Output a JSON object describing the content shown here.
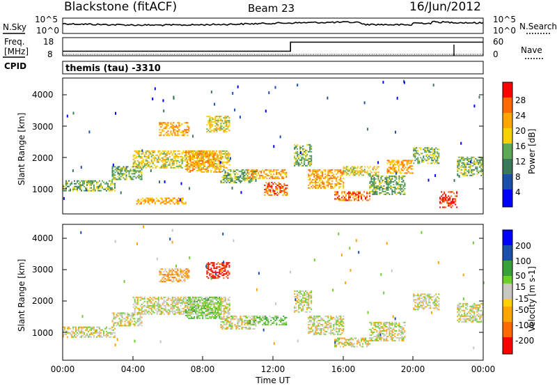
{
  "header": {
    "station": "Blackstone (fitACF)",
    "beam": "Beam 23",
    "date": "16/Jun/2012"
  },
  "noise_panel": {
    "left_label": "N.Sky",
    "right_label": "N.Search",
    "top_tick_left": "10^5",
    "bottom_tick_left": "10^0",
    "top_tick_right": "10^5",
    "bottom_tick_right": "10^0"
  },
  "freq_panel": {
    "left_label_top": "Freq.",
    "left_label_unit": "[MHz]",
    "right_label": "Nave",
    "left_ticks": [
      "18",
      "8"
    ],
    "right_ticks": [
      "60",
      "0"
    ]
  },
  "cpid": {
    "label": "CPID",
    "value": "themis (tau) -3310"
  },
  "power_panel": {
    "ylabel": "Slant Range [km]",
    "yticks": [
      "4000",
      "3000",
      "2000",
      "1000"
    ],
    "colorbar_label": "Power [dB]",
    "colorbar_ticks": [
      "28",
      "24",
      "20",
      "16",
      "12",
      "8",
      "4"
    ]
  },
  "velocity_panel": {
    "ylabel": "Slant Range [km]",
    "yticks": [
      "4000",
      "3000",
      "2000",
      "1000"
    ],
    "colorbar_label": "Velocity [m s-1]",
    "colorbar_ticks": [
      "200",
      "100",
      "50",
      "15",
      "-15",
      "-50",
      "-100",
      "-200"
    ]
  },
  "xaxis": {
    "label": "Time UT",
    "ticks": [
      "00:00",
      "04:00",
      "08:00",
      "12:00",
      "16:00",
      "20:00",
      "00:00"
    ]
  },
  "colors": {
    "power_scale": [
      "#0000ff",
      "#1c4faa",
      "#3a7a5a",
      "#5ea858",
      "#f6d200",
      "#ffa500",
      "#ff6a00",
      "#ff0000"
    ],
    "velocity_scale": [
      "#ff0000",
      "#ff6a00",
      "#ffa500",
      "#c8c8c0",
      "#6ccf2a",
      "#3aa03a",
      "#1c4faa",
      "#0000ff"
    ],
    "ground_scatter": "#c0c0b8"
  },
  "chart_data": [
    {
      "type": "line",
      "name": "noise",
      "x_hours_range": [
        0,
        24
      ],
      "ylim_log10": [
        0,
        5
      ]
    },
    {
      "type": "line",
      "name": "frequency",
      "x": [
        0,
        13.0,
        13.0,
        24
      ],
      "y_mhz": [
        10.5,
        10.5,
        15.5,
        15.5
      ],
      "ylim": [
        8,
        18
      ]
    },
    {
      "type": "heatmap",
      "name": "power",
      "xlim_hours": [
        0,
        24
      ],
      "ylim_km": [
        180,
        4500
      ],
      "zlim_db": [
        0,
        32
      ],
      "bands": [
        {
          "t0": 0.0,
          "t1": 3.0,
          "r0": 900,
          "r1": 1250,
          "level": 3
        },
        {
          "t0": 2.8,
          "t1": 4.5,
          "r0": 1300,
          "r1": 1700,
          "level": 3
        },
        {
          "t0": 4.0,
          "t1": 9.5,
          "r0": 1650,
          "r1": 2200,
          "level": 4
        },
        {
          "t0": 5.5,
          "t1": 7.2,
          "r0": 2700,
          "r1": 3100,
          "level": 5
        },
        {
          "t0": 8.2,
          "t1": 9.5,
          "r0": 2800,
          "r1": 3300,
          "level": 4
        },
        {
          "t0": 4.2,
          "t1": 7.0,
          "r0": 500,
          "r1": 700,
          "level": 5
        },
        {
          "t0": 7.0,
          "t1": 9.0,
          "r0": 1500,
          "r1": 2200,
          "level": 5
        },
        {
          "t0": 9.0,
          "t1": 11.0,
          "r0": 1200,
          "r1": 1600,
          "level": 3
        },
        {
          "t0": 10.5,
          "t1": 12.8,
          "r0": 1300,
          "r1": 1600,
          "level": 5
        },
        {
          "t0": 11.5,
          "t1": 12.8,
          "r0": 800,
          "r1": 1200,
          "level": 6
        },
        {
          "t0": 13.2,
          "t1": 14.2,
          "r0": 1700,
          "r1": 2400,
          "level": 3
        },
        {
          "t0": 14.0,
          "t1": 16.0,
          "r0": 1000,
          "r1": 1600,
          "level": 5
        },
        {
          "t0": 15.5,
          "t1": 17.5,
          "r0": 600,
          "r1": 900,
          "level": 6
        },
        {
          "t0": 16.0,
          "t1": 18.0,
          "r0": 1400,
          "r1": 1700,
          "level": 4
        },
        {
          "t0": 17.5,
          "t1": 19.5,
          "r0": 800,
          "r1": 1400,
          "level": 3
        },
        {
          "t0": 18.5,
          "t1": 20.0,
          "r0": 1500,
          "r1": 1900,
          "level": 5
        },
        {
          "t0": 20.0,
          "t1": 21.5,
          "r0": 1800,
          "r1": 2300,
          "level": 3
        },
        {
          "t0": 21.5,
          "t1": 22.5,
          "r0": 400,
          "r1": 900,
          "level": 7
        },
        {
          "t0": 22.5,
          "t1": 24.0,
          "r0": 1400,
          "r1": 2000,
          "level": 3
        }
      ]
    },
    {
      "type": "heatmap",
      "name": "velocity",
      "xlim_hours": [
        0,
        24
      ],
      "ylim_km": [
        180,
        4500
      ],
      "zlim_ms": [
        -250,
        250
      ],
      "bands": [
        {
          "t0": 0.0,
          "t1": 3.0,
          "r0": 900,
          "r1": 1250,
          "level": 3
        },
        {
          "t0": 2.8,
          "t1": 4.5,
          "r0": 1300,
          "r1": 1700,
          "level": 3
        },
        {
          "t0": 4.0,
          "t1": 9.5,
          "r0": 1650,
          "r1": 2200,
          "level": 3
        },
        {
          "t0": 5.5,
          "t1": 7.2,
          "r0": 2700,
          "r1": 3100,
          "level": 2
        },
        {
          "t0": 8.2,
          "t1": 9.5,
          "r0": 2800,
          "r1": 3300,
          "level": 0
        },
        {
          "t0": 7.0,
          "t1": 9.0,
          "r0": 1500,
          "r1": 2200,
          "level": 4
        },
        {
          "t0": 9.0,
          "t1": 11.0,
          "r0": 1200,
          "r1": 1600,
          "level": 3
        },
        {
          "t0": 10.5,
          "t1": 12.8,
          "r0": 1300,
          "r1": 1600,
          "level": 4
        },
        {
          "t0": 13.2,
          "t1": 14.2,
          "r0": 1700,
          "r1": 2400,
          "level": 3
        },
        {
          "t0": 14.0,
          "t1": 16.0,
          "r0": 1000,
          "r1": 1600,
          "level": 3
        },
        {
          "t0": 15.5,
          "t1": 17.5,
          "r0": 600,
          "r1": 900,
          "level": 3
        },
        {
          "t0": 17.5,
          "t1": 19.5,
          "r0": 800,
          "r1": 1400,
          "level": 3
        },
        {
          "t0": 20.0,
          "t1": 21.5,
          "r0": 1800,
          "r1": 2300,
          "level": 3
        },
        {
          "t0": 22.5,
          "t1": 24.0,
          "r0": 1400,
          "r1": 2000,
          "level": 3
        }
      ]
    }
  ]
}
